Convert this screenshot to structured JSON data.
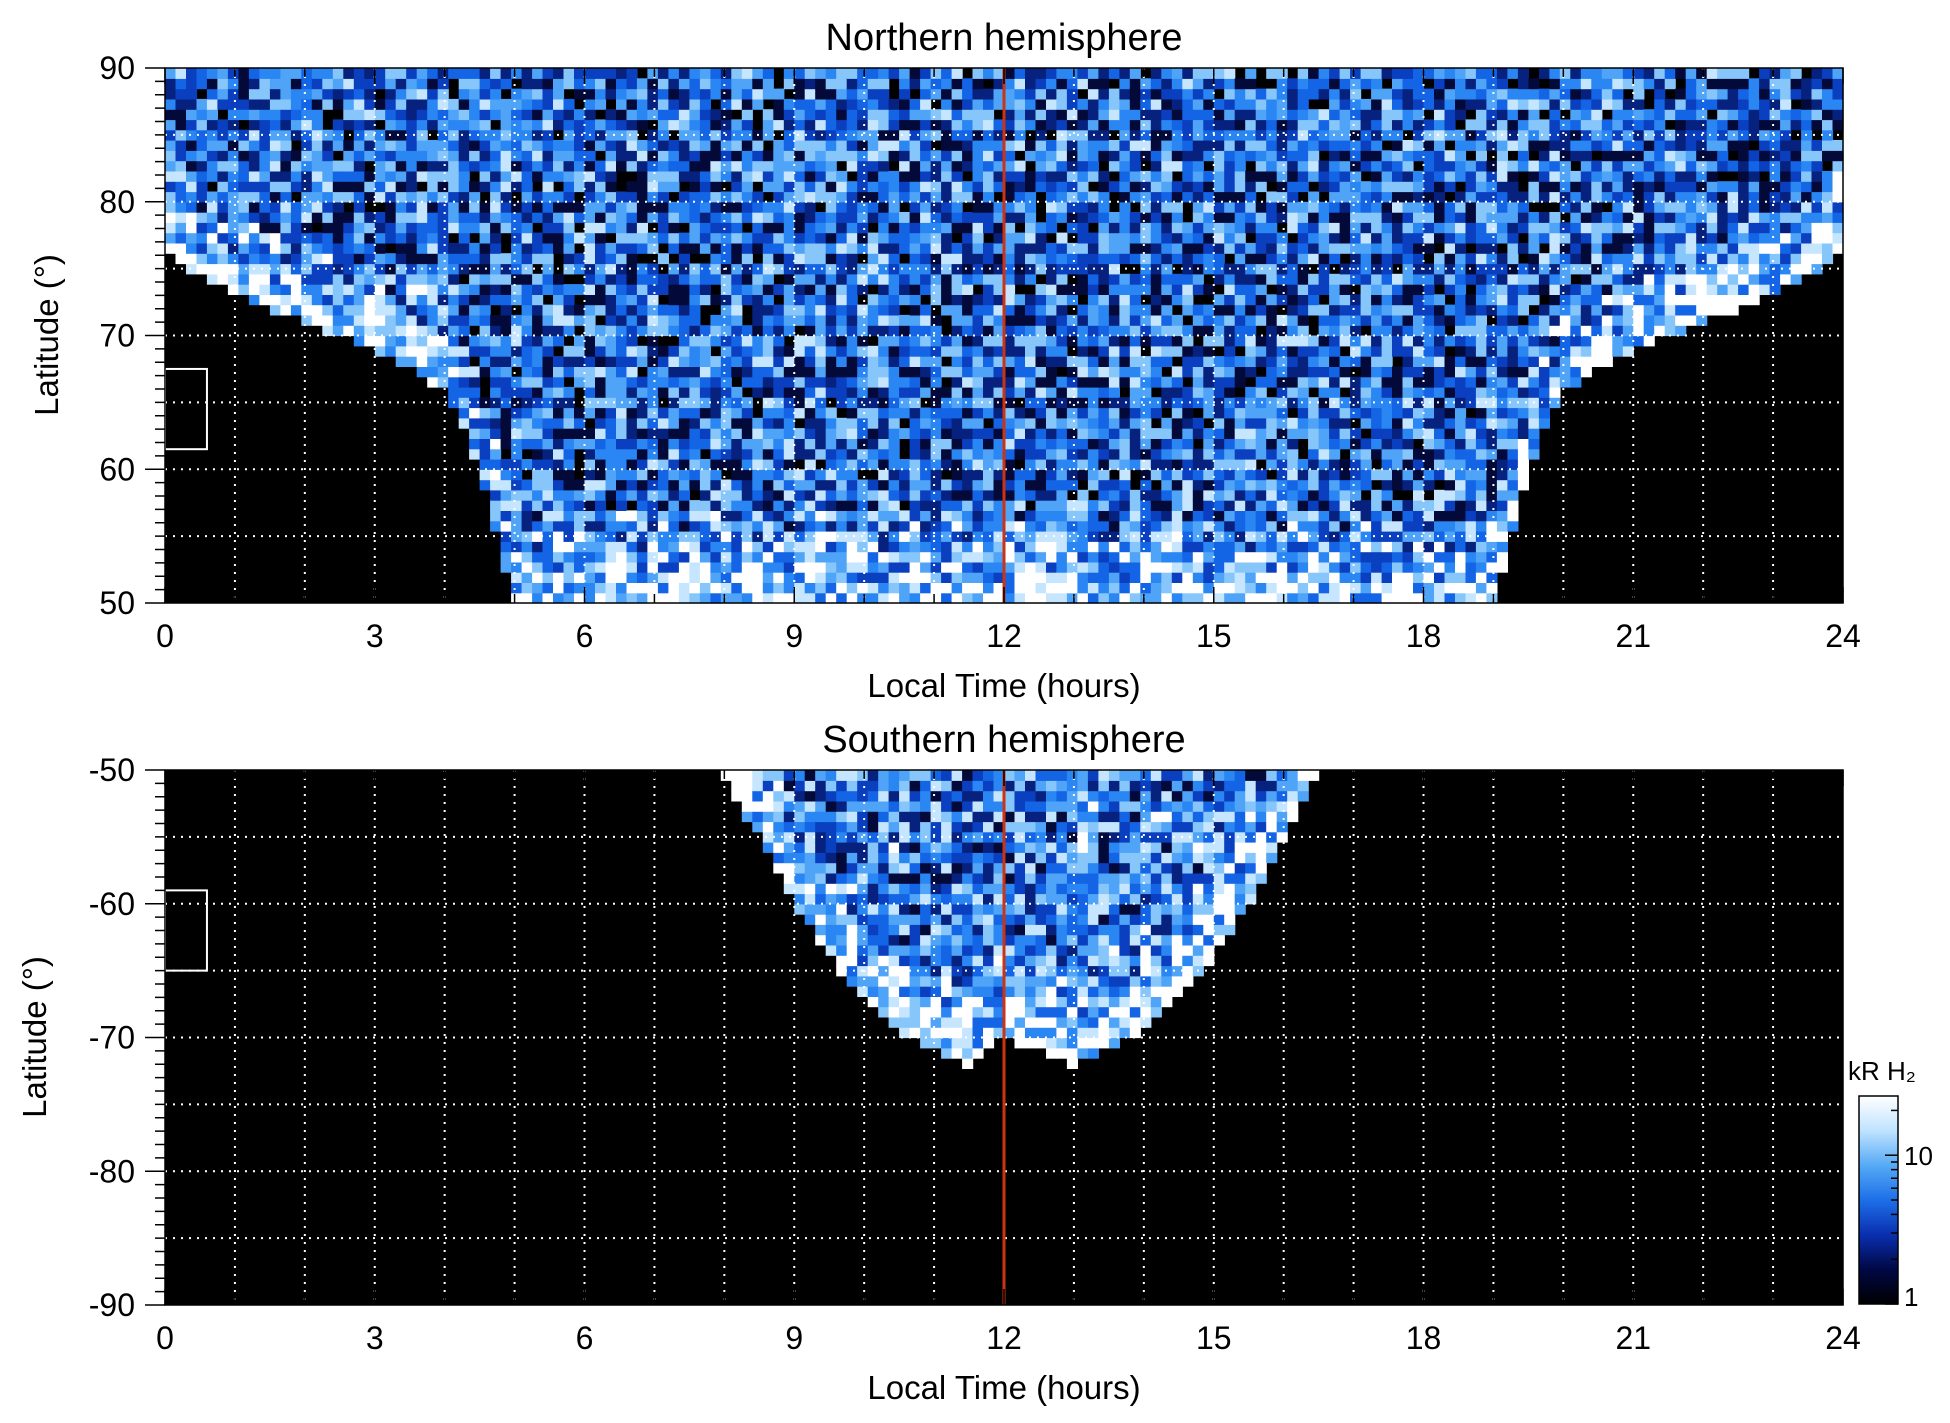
{
  "chart_data": [
    {
      "type": "heatmap",
      "title": "Northern hemisphere",
      "xlabel": "Local Time (hours)",
      "ylabel": "Latitude (°)",
      "xlim": [
        0,
        24
      ],
      "ylim": [
        50,
        90
      ],
      "xticks": [
        "0",
        "3",
        "6",
        "9",
        "12",
        "15",
        "18",
        "21",
        "24"
      ],
      "yticks": [
        "50",
        "60",
        "70",
        "80",
        "90"
      ],
      "grid": true,
      "reference_line": {
        "x": 12,
        "color": "#cc3311"
      },
      "marker_box": {
        "x_range": [
          0,
          0.6
        ],
        "y_range": [
          61.5,
          67.5
        ]
      },
      "coverage": {
        "local_time": [
          0,
          1,
          2,
          3,
          4,
          4.5,
          5,
          6,
          7,
          8,
          9,
          10,
          11,
          12,
          13,
          14,
          15,
          16,
          17,
          18,
          19,
          19.5,
          20,
          21,
          22,
          23,
          24
        ],
        "min_latitude": [
          76,
          73,
          71,
          69,
          66,
          60,
          50,
          50,
          50,
          50,
          50,
          50,
          50,
          50,
          50,
          50,
          50,
          50,
          50,
          50,
          50,
          60,
          66,
          69,
          71,
          73,
          76
        ]
      }
    },
    {
      "type": "heatmap",
      "title": "Southern hemisphere",
      "xlabel": "Local Time (hours)",
      "ylabel": "Latitude (°)",
      "xlim": [
        0,
        24
      ],
      "ylim": [
        -90,
        -50
      ],
      "xticks": [
        "0",
        "3",
        "6",
        "9",
        "12",
        "15",
        "18",
        "21",
        "24"
      ],
      "yticks": [
        "-90",
        "-80",
        "-70",
        "-60",
        "-50"
      ],
      "grid": true,
      "reference_line": {
        "x": 12,
        "color": "#cc3311"
      },
      "marker_box": {
        "x_range": [
          0,
          0.6
        ],
        "y_range": [
          -65,
          -59
        ]
      },
      "coverage": {
        "local_time": [
          7.9,
          8.5,
          9,
          9.5,
          10,
          10.5,
          11,
          11.5,
          12,
          12.5,
          13,
          13.5,
          14,
          14.5,
          15,
          15.5,
          16,
          16.5
        ],
        "max_depth_latitude": [
          -50,
          -55,
          -60,
          -64,
          -67,
          -69.5,
          -71,
          -72,
          -70,
          -71,
          -72,
          -71,
          -69.5,
          -67,
          -64,
          -60,
          -55,
          -50
        ]
      }
    }
  ],
  "colorbar": {
    "label": "kR H₂",
    "scale": "log",
    "range": [
      1,
      25
    ],
    "ticks": [
      "1",
      "10"
    ],
    "colors": [
      "#000000",
      "#000844",
      "#0a2fb0",
      "#1e6fe8",
      "#56aaf5",
      "#bfe3ff",
      "#ffffff"
    ]
  }
}
